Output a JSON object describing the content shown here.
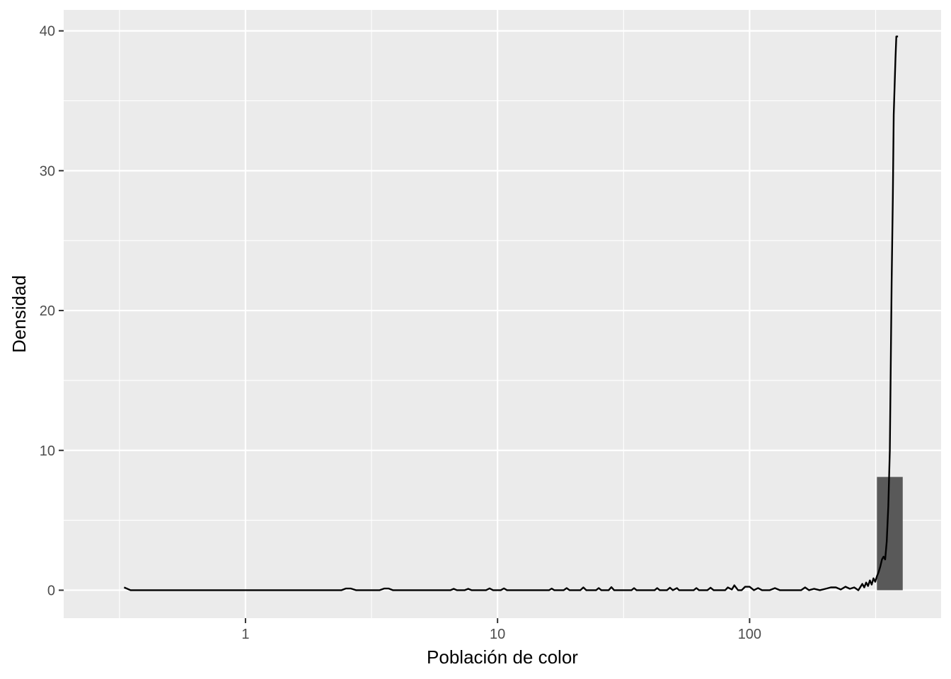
{
  "chart_data": {
    "type": "histogram-density",
    "title": "",
    "xlabel": "Población de color",
    "ylabel": "Densidad",
    "x_scale": "log10",
    "xlim": [
      0.19,
      575
    ],
    "ylim": [
      -2,
      41.5
    ],
    "x_ticks": [
      {
        "value": 1,
        "label": "1"
      },
      {
        "value": 10,
        "label": "10"
      },
      {
        "value": 100,
        "label": "100"
      }
    ],
    "y_ticks": [
      {
        "value": 0,
        "label": "0"
      },
      {
        "value": 10,
        "label": "10"
      },
      {
        "value": 20,
        "label": "20"
      },
      {
        "value": 30,
        "label": "30"
      },
      {
        "value": 40,
        "label": "40"
      }
    ],
    "grid": true,
    "panel_background": "#ebebeb",
    "grid_color": "#ffffff",
    "bar_color": "#595959",
    "line_color": "#000000",
    "bars": [
      {
        "x_start": 320,
        "x_end": 405,
        "density": 8.1
      }
    ],
    "density_curve": {
      "x": [
        0.33,
        0.35,
        2.4,
        2.5,
        2.62,
        2.75,
        3.4,
        3.55,
        3.7,
        3.85,
        6.5,
        6.7,
        6.9,
        7.4,
        7.65,
        7.9,
        9.0,
        9.3,
        9.6,
        10.3,
        10.6,
        10.9,
        16.0,
        16.4,
        16.8,
        18.3,
        18.8,
        19.3,
        21.3,
        21.9,
        22.5,
        24.6,
        25.2,
        25.8,
        27.6,
        28.3,
        29.0,
        34.0,
        34.8,
        35.6,
        42.0,
        43.0,
        44.0,
        47.0,
        48.3,
        49.6,
        51.5,
        52.5,
        60.0,
        61.5,
        63.0,
        68.0,
        70.0,
        72.0,
        80.0,
        82.0,
        85.0,
        87.0,
        90.0,
        93.0,
        96.0,
        100.0,
        104.0,
        108.0,
        112.0,
        120.0,
        126.0,
        132.0,
        160.0,
        166.0,
        172.0,
        180.0,
        190.0,
        200.0,
        210.0,
        220.0,
        230.0,
        240.0,
        250.0,
        260.0,
        270.0,
        280.0,
        285.0,
        290.0,
        295.0,
        300.0,
        305.0,
        310.0,
        315.0,
        320.0,
        325.0,
        330.0,
        335.0,
        340.0,
        345.0,
        350.0,
        355.0,
        360.0,
        363.0,
        366.0,
        370.0,
        373.0,
        376.0,
        379.0,
        382.0,
        385.0,
        388.0
      ],
      "y": [
        0.2,
        0.0,
        0.0,
        0.12,
        0.12,
        0.0,
        0.0,
        0.12,
        0.12,
        0.0,
        0.0,
        0.1,
        0.0,
        0.0,
        0.1,
        0.0,
        0.0,
        0.13,
        0.0,
        0.0,
        0.13,
        0.0,
        0.0,
        0.12,
        0.0,
        0.0,
        0.15,
        0.0,
        0.0,
        0.2,
        0.0,
        0.0,
        0.15,
        0.0,
        0.0,
        0.22,
        0.0,
        0.0,
        0.15,
        0.0,
        0.0,
        0.15,
        0.0,
        0.0,
        0.18,
        0.0,
        0.15,
        0.0,
        0.0,
        0.15,
        0.0,
        0.0,
        0.18,
        0.0,
        0.0,
        0.2,
        0.05,
        0.35,
        0.0,
        0.0,
        0.25,
        0.25,
        0.0,
        0.15,
        0.0,
        0.0,
        0.15,
        0.0,
        0.0,
        0.2,
        0.0,
        0.1,
        0.0,
        0.1,
        0.2,
        0.2,
        0.05,
        0.25,
        0.1,
        0.2,
        0.0,
        0.45,
        0.2,
        0.55,
        0.3,
        0.7,
        0.4,
        0.85,
        0.6,
        1.0,
        1.3,
        1.7,
        2.2,
        2.4,
        2.2,
        3.5,
        6.0,
        10.0,
        16.0,
        22.0,
        28.0,
        34.0,
        36.0,
        38.0,
        39.6,
        39.6,
        39.6
      ]
    }
  }
}
